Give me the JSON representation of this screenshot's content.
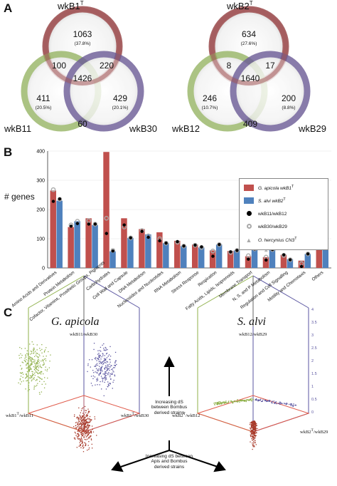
{
  "panels": {
    "a": "A",
    "b": "B",
    "c": "C"
  },
  "venn_left": {
    "top_label": "wkB1",
    "top_sup": "T",
    "left_label": "wkB11",
    "right_label": "wkB30",
    "top_only": "1063",
    "top_only_pct": "(37.8%)",
    "left_only": "411",
    "left_only_pct": "(20.5%)",
    "right_only": "429",
    "right_only_pct": "(20.1%)",
    "top_left": "100",
    "top_right": "220",
    "left_right": "60",
    "center": "1426"
  },
  "venn_right": {
    "top_label": "wkB2",
    "top_sup": "T",
    "left_label": "wkB12",
    "right_label": "wkB29",
    "top_only": "634",
    "top_only_pct": "(27.6%)",
    "left_only": "246",
    "left_only_pct": "(10.7%)",
    "right_only": "200",
    "right_only_pct": "(8.8%)",
    "top_left": "8",
    "top_right": "17",
    "left_right": "409",
    "center": "1640"
  },
  "colors": {
    "red": "#c0504d",
    "blue": "#4f81bd",
    "venn_red": "#a2585a",
    "venn_green": "#97b565",
    "venn_purple": "#6b5b96",
    "green_points": "#8fb04a",
    "purple_points": "#5a55a0",
    "red_points": "#a83a2a"
  },
  "chart_data": {
    "type": "bar",
    "ylabel": "# genes",
    "ylim": [
      0,
      400
    ],
    "yticks": [
      "0",
      "100",
      "200",
      "300",
      "400"
    ],
    "categories": [
      "Amino Acids and Derivatives",
      "Protein Metabolism",
      "Cofactor, Vitamins, Prosthetic Groups, Pigments",
      "Carbohydrates",
      "Cell Wall and Capsule",
      "DNA Metabolism",
      "Nucleosides and Nucleotides",
      "RNA Metabolism",
      "Stress Response",
      "Respiration",
      "Fatty Acids, Lipids, Isoprenoids",
      "Membrane Transport",
      "N, S, and P Metabolism",
      "Regulation and Cell Signalling",
      "Motility and Chemotaxis",
      "Others"
    ],
    "series": [
      {
        "name": "G. apicola wkB1",
        "sup": "T",
        "values": [
          265,
          140,
          170,
          397,
          170,
          133,
          122,
          93,
          80,
          60,
          58,
          40,
          37,
          45,
          25,
          115
        ]
      },
      {
        "name": "S. alvi wkB2",
        "sup": "T",
        "values": [
          230,
          160,
          147,
          57,
          103,
          115,
          85,
          75,
          70,
          80,
          60,
          65,
          63,
          30,
          48,
          107
        ]
      }
    ],
    "markers": {
      "wkB11_wkB12": [
        [
          228,
          236
        ],
        [
          143,
          152
        ],
        [
          150,
          150
        ],
        [
          118,
          58
        ],
        [
          147,
          103
        ],
        [
          125,
          105
        ],
        [
          93,
          85
        ],
        [
          90,
          75
        ],
        [
          78,
          72
        ],
        [
          40,
          80
        ],
        [
          55,
          60
        ],
        [
          30,
          65
        ],
        [
          27,
          63
        ],
        [
          45,
          28
        ],
        [
          5,
          48
        ],
        [
          120,
          117
        ]
      ],
      "wkB30_wkB29": [
        [
          268,
          235
        ],
        [
          147,
          160
        ],
        [
          162,
          150
        ],
        [
          170,
          60
        ],
        [
          140,
          103
        ],
        [
          128,
          110
        ],
        [
          100,
          85
        ],
        [
          88,
          75
        ],
        [
          78,
          70
        ],
        [
          58,
          80
        ],
        [
          53,
          60
        ],
        [
          42,
          65
        ],
        [
          37,
          63
        ],
        [
          43,
          28
        ],
        [
          15,
          48
        ],
        [
          112,
          108
        ]
      ],
      "O_hercynius": [
        [
          null,
          null
        ],
        [
          null,
          null
        ],
        [
          null,
          null
        ],
        [
          null,
          null
        ],
        [
          null,
          null
        ],
        [
          null,
          null
        ],
        [
          null,
          null
        ],
        [
          null,
          null
        ],
        [
          null,
          null
        ],
        [
          null,
          null
        ],
        [
          null,
          null
        ],
        [
          null,
          null
        ],
        [
          60,
          null
        ],
        [
          null,
          null
        ],
        [
          null,
          null
        ],
        [
          null,
          null
        ]
      ]
    },
    "legend": [
      {
        "label": "G. apicola wkB1",
        "sup": "T",
        "kind": "bar-red"
      },
      {
        "label": "S. alvi wkB2",
        "sup": "T",
        "kind": "bar-blue"
      },
      {
        "label": "wkB11/wkB12",
        "kind": "dot-black"
      },
      {
        "label": "wkB30/wkB29",
        "kind": "ring-grey"
      },
      {
        "label": "O. hercynius CN3",
        "sup": "T",
        "kind": "triangle-grey"
      }
    ]
  },
  "cubes": {
    "left_title": "G. apicola",
    "right_title": "S. alvi",
    "left_top_label": "wkB11/wkB30",
    "left_left_label": "wkB1",
    "left_left_sup": "T",
    "left_left_suffix": "/wkB11",
    "left_right_label": "wkB1",
    "left_right_sup": "T",
    "left_right_suffix": "/wkB30",
    "right_top_label": "wkB12/wkB29",
    "right_left_label": "wkB2",
    "right_left_sup": "T",
    "right_left_suffix": "/wkB12",
    "right_right_label": "wkB2",
    "right_right_sup": "T",
    "right_right_suffix": "/wkB29",
    "up_annot": "Increasing dS between Bombus derived strains",
    "down_annot": "Increasing dS between Apis and Bombus derived strains",
    "right_axis_ticks": [
      "4",
      "3.5",
      "3",
      "2.5",
      "2",
      "1.5",
      "1",
      "0.5",
      "0"
    ]
  }
}
